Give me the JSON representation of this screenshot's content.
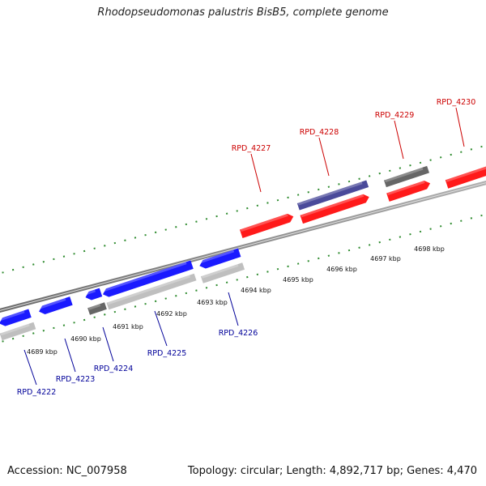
{
  "title": "Rhodopseudomonas palustris BisB5, complete genome",
  "footer": {
    "accession": "Accession: NC_007958",
    "stats": "Topology: circular; Length: 4,892,717 bp; Genes: 4,470"
  },
  "colors": {
    "backbone": "#8a8a8a",
    "tick": "#2e8b2e",
    "forward_gene": "#ff1a1a",
    "reverse_gene": "#1a1aff",
    "forward_label": "#cc0000",
    "reverse_label": "#000099",
    "leader": "#cc0000",
    "reverse_leader": "#000099",
    "purple": "#4a4a9a",
    "dark_grey": "#666666",
    "light_grey": "#bfbfbf"
  },
  "ticks": [
    "4689 kbp",
    "4690 kbp",
    "4691 kbp",
    "4692 kbp",
    "4693 kbp",
    "4694 kbp",
    "4695 kbp",
    "4696 kbp",
    "4697 kbp",
    "4698 kbp"
  ],
  "genes": {
    "forward": [
      "RPD_4227",
      "RPD_4228",
      "RPD_4229",
      "RPD_4230"
    ],
    "reverse": [
      "RPD_4222",
      "RPD_4223",
      "RPD_4224",
      "RPD_4225",
      "RPD_4226"
    ]
  }
}
